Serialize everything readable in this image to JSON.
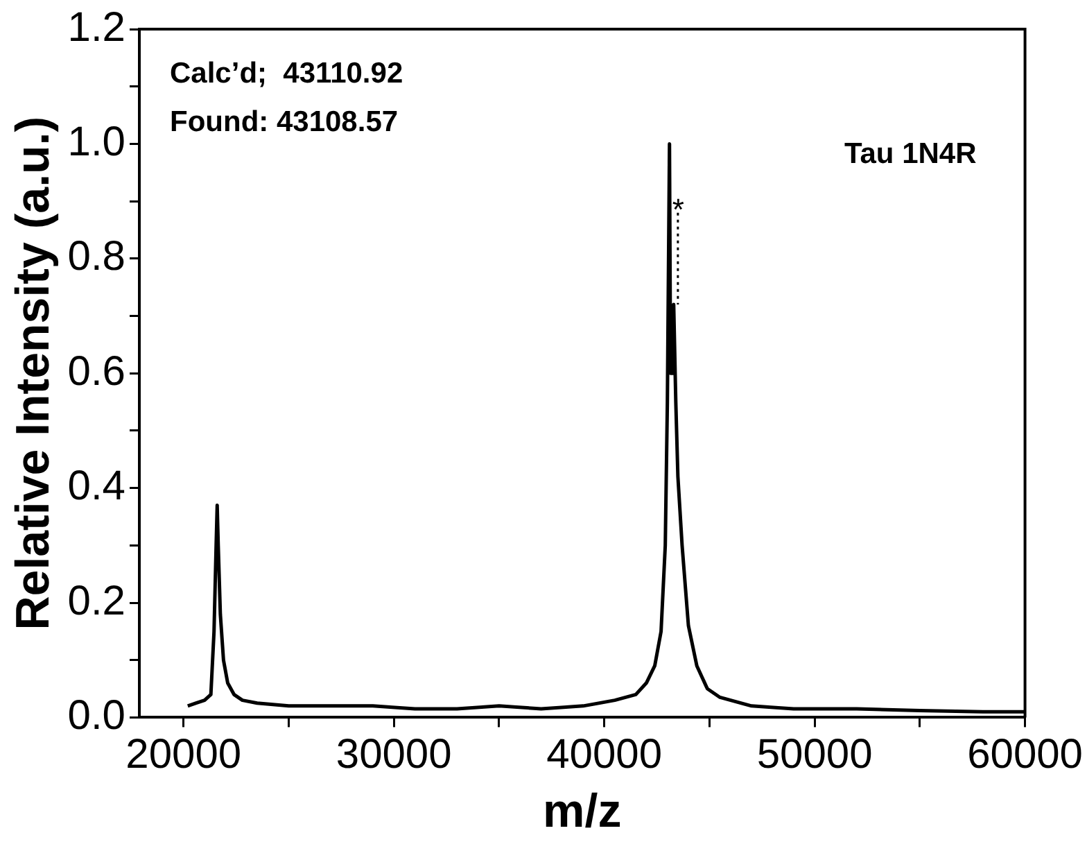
{
  "chart_data": {
    "type": "line",
    "xlabel": "m/z",
    "ylabel": "Relative Intensity (a.u.)",
    "xlim": [
      17900,
      60000
    ],
    "ylim": [
      0,
      1.2
    ],
    "xticks": [
      20000,
      {
        "value": 25000,
        "label": null
      },
      30000,
      {
        "value": 35000,
        "label": null
      },
      40000,
      {
        "value": 45000,
        "label": null
      },
      50000,
      {
        "value": 55000,
        "label": null
      },
      60000
    ],
    "yticks": [
      {
        "value": 0,
        "label": "0.0"
      },
      {
        "value": 0.1,
        "label": null
      },
      {
        "value": 0.2,
        "label": "0.2"
      },
      {
        "value": 0.3,
        "label": null
      },
      {
        "value": 0.4,
        "label": "0.4"
      },
      {
        "value": 0.5,
        "label": null
      },
      {
        "value": 0.6,
        "label": "0.6"
      },
      {
        "value": 0.7,
        "label": null
      },
      {
        "value": 0.8,
        "label": "0.8"
      },
      {
        "value": 0.9,
        "label": null
      },
      {
        "value": 1.0,
        "label": "1.0"
      },
      {
        "value": 1.1,
        "label": null
      },
      {
        "value": 1.2,
        "label": "1.2"
      }
    ],
    "grid": false,
    "legend": false,
    "marker": "none",
    "line_style": "solid",
    "series": [
      {
        "color": "#000000",
        "x": [
          20200,
          20600,
          21000,
          21300,
          21450,
          21550,
          21600,
          21650,
          21750,
          21900,
          22100,
          22400,
          22800,
          23500,
          25000,
          27000,
          29000,
          31000,
          33000,
          35000,
          37000,
          39000,
          40500,
          41500,
          42000,
          42400,
          42700,
          42900,
          43000,
          43100,
          43150,
          43250,
          43300,
          43400,
          43500,
          43700,
          44000,
          44400,
          44900,
          45500,
          47000,
          49000,
          52000,
          55000,
          58000,
          60000
        ],
        "values": [
          0.02,
          0.025,
          0.03,
          0.04,
          0.15,
          0.3,
          0.37,
          0.3,
          0.18,
          0.1,
          0.06,
          0.04,
          0.03,
          0.025,
          0.02,
          0.02,
          0.02,
          0.015,
          0.015,
          0.02,
          0.015,
          0.02,
          0.03,
          0.04,
          0.06,
          0.09,
          0.15,
          0.3,
          0.55,
          1.0,
          0.6,
          0.6,
          0.72,
          0.55,
          0.42,
          0.3,
          0.16,
          0.09,
          0.05,
          0.035,
          0.02,
          0.015,
          0.015,
          0.012,
          0.01,
          0.01
        ]
      },
      {
        "type": "line",
        "line_style": "dotted",
        "color": "#000000",
        "x": [
          43500,
          43500
        ],
        "values": [
          0.88,
          0.72
        ]
      }
    ],
    "annotations": [
      "Calc’d;  43110.92",
      "Found: 43108.57",
      "Tau 1N4R",
      "*"
    ]
  }
}
